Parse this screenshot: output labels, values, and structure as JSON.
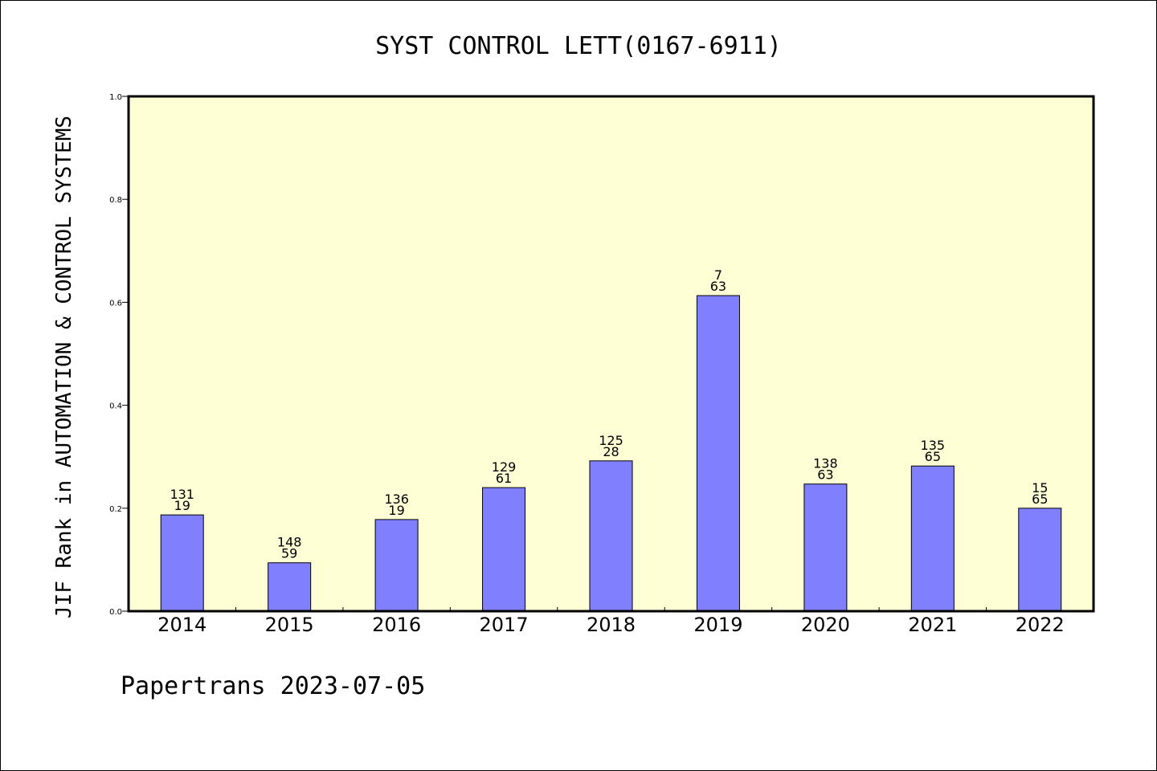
{
  "colors": {
    "plot_background": "#ffffd5",
    "bar_fill": "#8080ff",
    "bar_stroke": "#000000",
    "axis": "#000000"
  },
  "footer": "Papertrans 2023-07-05",
  "chart_data": {
    "type": "bar",
    "title": "SYST CONTROL LETT(0167-6911)",
    "xlabel": "",
    "ylabel": "JIF Rank in AUTOMATION & CONTROL SYSTEMS",
    "ylim": [
      0,
      1.0
    ],
    "yticks": [
      "0.0",
      "0.2",
      "0.4",
      "0.6",
      "0.8",
      "1.0"
    ],
    "grid": false,
    "categories": [
      "2014",
      "2015",
      "2016",
      "2017",
      "2018",
      "2019",
      "2020",
      "2021",
      "2022"
    ],
    "values": [
      0.187,
      0.094,
      0.178,
      0.24,
      0.292,
      0.613,
      0.247,
      0.282,
      0.2
    ],
    "labels_top": [
      "131",
      "148",
      "136",
      "129",
      "125",
      "7",
      "138",
      "135",
      "15"
    ],
    "labels_bottom": [
      "19",
      "59",
      "19",
      "61",
      "28",
      "63",
      "63",
      "65",
      "65"
    ]
  }
}
